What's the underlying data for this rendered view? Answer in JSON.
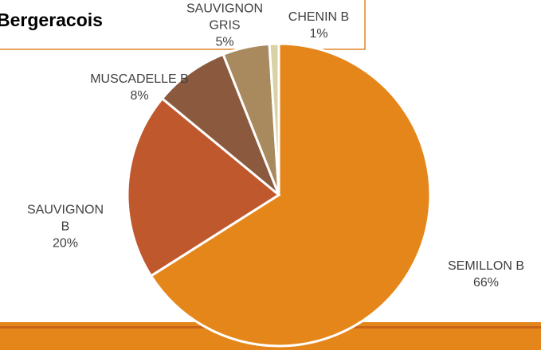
{
  "chart_data": {
    "type": "pie",
    "title": "Bergeracois",
    "categories": [
      "SEMILLON B",
      "SAUVIGNON B",
      "MUSCADELLE B",
      "SAUVIGNON GRIS",
      "CHENIN B"
    ],
    "values": [
      66,
      20,
      8,
      5,
      1
    ],
    "value_labels": [
      "66%",
      "20%",
      "8%",
      "5%",
      "1%"
    ],
    "colors": [
      "#e5861a",
      "#bf582c",
      "#8b5a3e",
      "#a88a5e",
      "#d9d2a4"
    ]
  }
}
